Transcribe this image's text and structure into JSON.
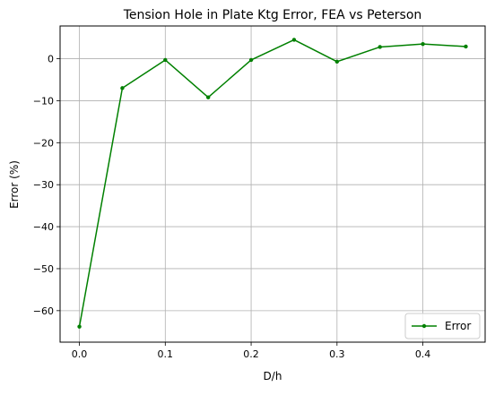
{
  "chart_data": {
    "type": "line",
    "title": "Tension Hole in Plate Ktg Error, FEA vs Peterson",
    "xlabel": "D/h",
    "ylabel": "Error (%)",
    "xlim": [
      -0.0225,
      0.4725
    ],
    "ylim": [
      -67.5,
      7.8
    ],
    "xticks": [
      0.0,
      0.1,
      0.2,
      0.3,
      0.4
    ],
    "xtick_labels": [
      "0.0",
      "0.1",
      "0.2",
      "0.3",
      "0.4"
    ],
    "yticks": [
      -60,
      -50,
      -40,
      -30,
      -20,
      -10,
      0
    ],
    "ytick_labels": [
      "−60",
      "−50",
      "−40",
      "−30",
      "−20",
      "−10",
      "0"
    ],
    "grid": true,
    "legend_position": "lower right",
    "series": [
      {
        "name": "Error",
        "color": "#008000",
        "marker": "point",
        "x": [
          0.0,
          0.05,
          0.1,
          0.15,
          0.2,
          0.25,
          0.3,
          0.35,
          0.4,
          0.45
        ],
        "y": [
          -63.8,
          -7.0,
          -0.3,
          -9.2,
          -0.3,
          4.5,
          -0.7,
          2.8,
          3.5,
          2.9
        ]
      }
    ]
  }
}
